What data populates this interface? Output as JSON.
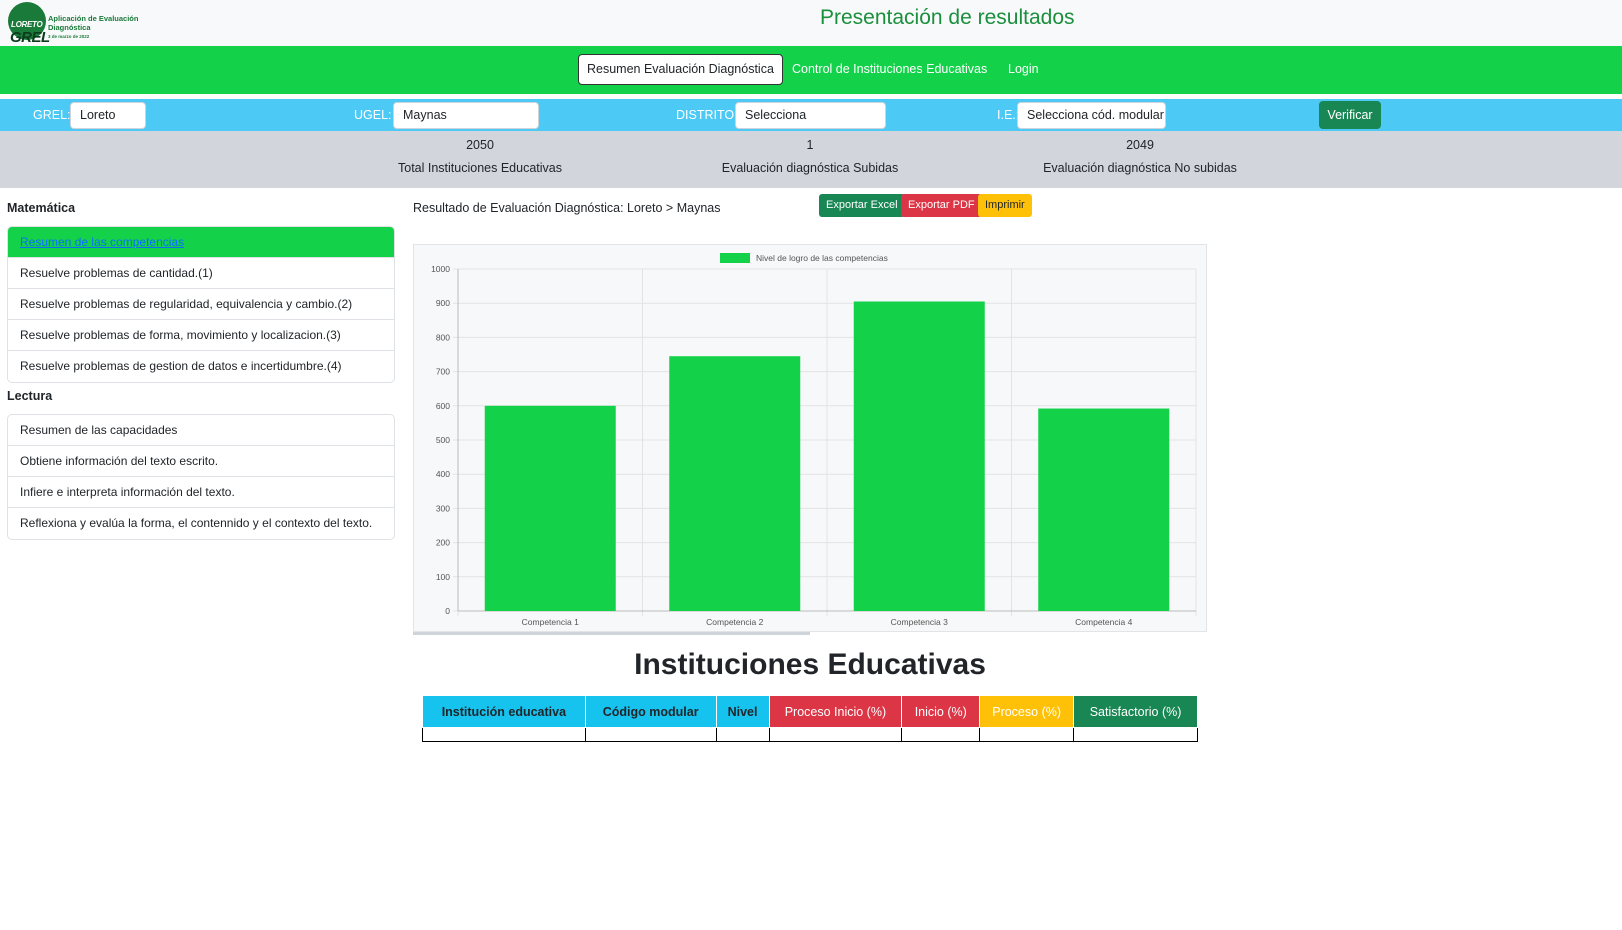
{
  "header": {
    "logo": {
      "loreto": "LORETO",
      "grel": "GREL",
      "app_name": "Aplicación de Evaluación Diagnóstica",
      "date": "3 de marzo de 2022"
    },
    "title": "Presentación de resultados"
  },
  "nav": {
    "items": [
      {
        "label": "Resumen Evaluación Diagnóstica"
      },
      {
        "label": "Control de Instituciones Educativas"
      },
      {
        "label": "Login"
      }
    ]
  },
  "filters": {
    "grel": {
      "label": "GREL:",
      "value": "Loreto"
    },
    "ugel": {
      "label": "UGEL:",
      "value": "Maynas"
    },
    "distrito": {
      "label": "DISTRITO:",
      "value": "Selecciona"
    },
    "ie": {
      "label": "I.E.:",
      "value": "Selecciona cód. modular"
    },
    "verify_label": "Verificar"
  },
  "stats": [
    {
      "value": "2050",
      "label": "Total Instituciones Educativas"
    },
    {
      "value": "1",
      "label": "Evaluación diagnóstica Subidas"
    },
    {
      "value": "2049",
      "label": "Evaluación diagnóstica No subidas"
    }
  ],
  "sidebar": {
    "matematica": {
      "title": "Matemática",
      "items": [
        {
          "label": "Resumen de las competencias"
        },
        {
          "label": "Resuelve problemas de cantidad.(1)"
        },
        {
          "label": "Resuelve problemas de regularidad, equivalencia y cambio.(2)"
        },
        {
          "label": "Resuelve problemas de forma, movimiento y localizacion.(3)"
        },
        {
          "label": "Resuelve problemas de gestion de datos e incertidumbre.(4)"
        }
      ]
    },
    "lectura": {
      "title": "Lectura",
      "items": [
        {
          "label": "Resumen de las capacidades"
        },
        {
          "label": "Obtiene información del texto escrito."
        },
        {
          "label": "Infiere e interpreta información del texto."
        },
        {
          "label": "Reflexiona y evalúa la forma, el contennido y el contexto del texto."
        }
      ]
    }
  },
  "main": {
    "result_title": "Resultado de Evaluación Diagnóstica: Loreto > Maynas",
    "buttons": {
      "excel": "Exportar Excel",
      "pdf": "Exportar PDF",
      "print": "Imprimir"
    },
    "table_title": "Instituciones Educativas",
    "table_headers": [
      "Institución educativa",
      "Código modular",
      "Nivel",
      "Proceso Inicio (%)",
      "Inicio (%)",
      "Proceso (%)",
      "Satisfactorio (%)"
    ]
  },
  "colors": {
    "primary_green": "#13d24a",
    "filter_blue": "#4dc9f5",
    "success": "#198754",
    "danger": "#dc3545",
    "warning": "#ffc107",
    "info": "#15c3ee"
  },
  "chart_data": {
    "type": "bar",
    "categories": [
      "Competencia 1",
      "Competencia 2",
      "Competencia 3",
      "Competencia 4"
    ],
    "series": [
      {
        "name": "Nivel de logro de las competencias",
        "values": [
          600,
          745,
          905,
          592
        ]
      }
    ],
    "ylim": [
      0,
      1000
    ],
    "yticks": [
      0,
      100,
      200,
      300,
      400,
      500,
      600,
      700,
      800,
      900,
      1000
    ],
    "legend": "top",
    "grid": true,
    "color": "#13d24a"
  }
}
